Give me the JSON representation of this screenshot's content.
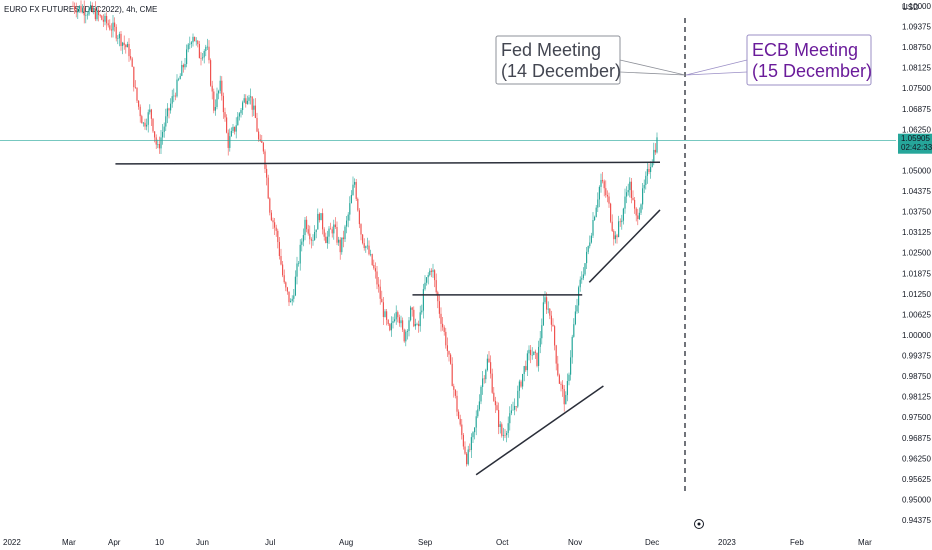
{
  "chart_data": {
    "type": "candlestick",
    "title": "EURO FX FUTURES (DEC2022), 4h, CME",
    "currency": "USD",
    "y_ticks": [
      "1.10000",
      "1.09375",
      "1.08750",
      "1.08125",
      "1.07500",
      "1.06875",
      "1.06250",
      "1.05625",
      "1.05000",
      "1.04375",
      "1.03750",
      "1.03125",
      "1.02500",
      "1.01875",
      "1.01250",
      "1.00625",
      "1.00000",
      "0.99375",
      "0.98750",
      "0.98125",
      "0.97500",
      "0.96875",
      "0.96250",
      "0.95625",
      "0.95000",
      "0.94375"
    ],
    "ylim": [
      0.94375,
      1.1
    ],
    "x_ticks": [
      "2022",
      "Mar",
      "Apr",
      "10",
      "Jun",
      "Jul",
      "Aug",
      "Sep",
      "Oct",
      "Nov",
      "Dec",
      "2023",
      "Feb",
      "Mar"
    ],
    "current_price": {
      "value": "1.05905",
      "countdown": "02:42:33"
    },
    "colors": {
      "up": "#26a69a",
      "down": "#ef5350",
      "price_line": "#26a69a",
      "fed": "#434651",
      "ecb": "#6a1b9a",
      "trendline": "#2a2e39"
    },
    "price_path": [
      [
        0.0,
        1.1
      ],
      [
        0.03,
        1.098
      ],
      [
        0.06,
        1.0925
      ],
      [
        0.08,
        1.086
      ],
      [
        0.09,
        1.072
      ],
      [
        0.1,
        1.064
      ],
      [
        0.11,
        1.068
      ],
      [
        0.12,
        1.056
      ],
      [
        0.13,
        1.064
      ],
      [
        0.14,
        1.071
      ],
      [
        0.15,
        1.077
      ],
      [
        0.16,
        1.084
      ],
      [
        0.17,
        1.092
      ],
      [
        0.18,
        1.085
      ],
      [
        0.19,
        1.088
      ],
      [
        0.2,
        1.069
      ],
      [
        0.21,
        1.076
      ],
      [
        0.22,
        1.058
      ],
      [
        0.23,
        1.063
      ],
      [
        0.24,
        1.07
      ],
      [
        0.25,
        1.074
      ],
      [
        0.26,
        1.065
      ],
      [
        0.265,
        1.057
      ],
      [
        0.27,
        1.058
      ],
      [
        0.28,
        1.038
      ],
      [
        0.29,
        1.03
      ],
      [
        0.3,
        1.015
      ],
      [
        0.31,
        1.009
      ],
      [
        0.32,
        1.022
      ],
      [
        0.33,
        1.035
      ],
      [
        0.34,
        1.029
      ],
      [
        0.35,
        1.037
      ],
      [
        0.36,
        1.029
      ],
      [
        0.37,
        1.033
      ],
      [
        0.38,
        1.026
      ],
      [
        0.39,
        1.035
      ],
      [
        0.4,
        1.047
      ],
      [
        0.41,
        1.03
      ],
      [
        0.42,
        1.025
      ],
      [
        0.43,
        1.018
      ],
      [
        0.44,
        1.008
      ],
      [
        0.45,
        1.0
      ],
      [
        0.46,
        1.009
      ],
      [
        0.47,
        0.999
      ],
      [
        0.48,
        1.007
      ],
      [
        0.49,
        1.001
      ],
      [
        0.5,
        1.015
      ],
      [
        0.51,
        1.021
      ],
      [
        0.52,
        1.008
      ],
      [
        0.53,
        0.998
      ],
      [
        0.54,
        0.985
      ],
      [
        0.55,
        0.972
      ],
      [
        0.56,
        0.962
      ],
      [
        0.57,
        0.97
      ],
      [
        0.58,
        0.985
      ],
      [
        0.59,
        0.993
      ],
      [
        0.6,
        0.978
      ],
      [
        0.61,
        0.969
      ],
      [
        0.62,
        0.974
      ],
      [
        0.63,
        0.98
      ],
      [
        0.64,
        0.989
      ],
      [
        0.65,
        0.995
      ],
      [
        0.66,
        0.992
      ],
      [
        0.67,
        1.011
      ],
      [
        0.68,
        1.005
      ],
      [
        0.69,
        0.987
      ],
      [
        0.7,
        0.979
      ],
      [
        0.71,
        1.0
      ],
      [
        0.72,
        1.015
      ],
      [
        0.73,
        1.024
      ],
      [
        0.74,
        1.036
      ],
      [
        0.75,
        1.047
      ],
      [
        0.76,
        1.041
      ],
      [
        0.77,
        1.029
      ],
      [
        0.78,
        1.036
      ],
      [
        0.79,
        1.047
      ],
      [
        0.8,
        1.035
      ],
      [
        0.81,
        1.043
      ],
      [
        0.82,
        1.052
      ],
      [
        0.83,
        1.059
      ]
    ],
    "trendlines": [
      {
        "label": "resistance-upper",
        "from": [
          0.06,
          1.052
        ],
        "to": [
          0.83,
          1.0525
        ]
      },
      {
        "label": "resistance-mid",
        "from": [
          0.48,
          1.0122
        ],
        "to": [
          0.72,
          1.0122
        ]
      },
      {
        "label": "support-lower",
        "from": [
          0.57,
          0.9575
        ],
        "to": [
          0.75,
          0.9845
        ]
      },
      {
        "label": "support-upper",
        "from": [
          0.73,
          1.016
        ],
        "to": [
          0.83,
          1.038
        ]
      }
    ],
    "annotations": [
      {
        "name": "fed-meeting",
        "line1": "Fed Meeting",
        "line2": "(14 December)"
      },
      {
        "name": "ecb-meeting",
        "line1": "ECB Meeting",
        "line2": "(15 December)"
      }
    ]
  }
}
